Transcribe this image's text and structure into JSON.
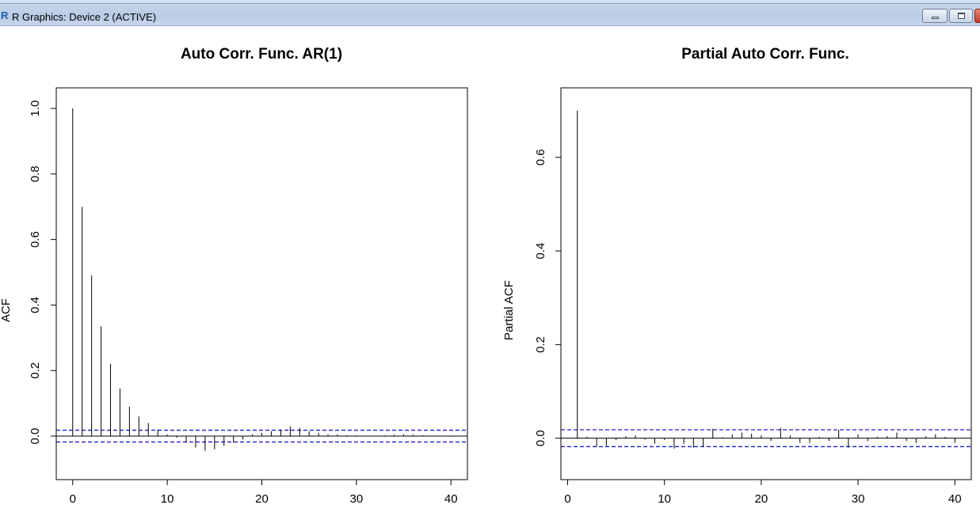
{
  "window": {
    "title": "R Graphics: Device 2 (ACTIVE)",
    "icon": "r-logo-icon"
  },
  "chart_data": [
    {
      "type": "bar",
      "title": "Auto Corr. Func. AR(1)",
      "xlabel": "",
      "ylabel": "ACF",
      "xlim": [
        0,
        40
      ],
      "ylim": [
        -0.085,
        1.015
      ],
      "x_ticks": [
        0,
        10,
        20,
        30,
        40
      ],
      "y_ticks": [
        0.0,
        0.2,
        0.4,
        0.6,
        0.8,
        1.0
      ],
      "y_tick_labels": [
        "0.0",
        "0.2",
        "0.4",
        "0.6",
        "0.8",
        "1.0"
      ],
      "confidence_band": 0.018,
      "lags": [
        0,
        1,
        2,
        3,
        4,
        5,
        6,
        7,
        8,
        9,
        10,
        11,
        12,
        13,
        14,
        15,
        16,
        17,
        18,
        19,
        20,
        21,
        22,
        23,
        24,
        25,
        26,
        27,
        28,
        29,
        30,
        31,
        32,
        33,
        34,
        35,
        36,
        37,
        38,
        39,
        40
      ],
      "values": [
        1.0,
        0.7,
        0.49,
        0.335,
        0.22,
        0.145,
        0.09,
        0.06,
        0.04,
        0.02,
        0.005,
        -0.005,
        -0.02,
        -0.035,
        -0.045,
        -0.04,
        -0.03,
        -0.02,
        -0.01,
        0.005,
        0.01,
        0.015,
        0.02,
        0.03,
        0.025,
        0.015,
        0.01,
        0.005,
        0.005,
        0.003,
        0.002,
        0.0,
        0.0,
        0.002,
        0.004,
        0.005,
        0.004,
        0.003,
        0.002,
        0.001,
        -0.002
      ]
    },
    {
      "type": "bar",
      "title": "Partial Auto Corr. Func.",
      "xlabel": "",
      "ylabel": "Partial ACF",
      "xlim": [
        1,
        40
      ],
      "ylim": [
        -0.055,
        0.715
      ],
      "x_ticks": [
        0,
        10,
        20,
        30,
        40
      ],
      "y_ticks": [
        0.0,
        0.2,
        0.4,
        0.6
      ],
      "y_tick_labels": [
        "0.0",
        "0.2",
        "0.4",
        "0.6"
      ],
      "confidence_band": 0.018,
      "lags": [
        1,
        2,
        3,
        4,
        5,
        6,
        7,
        8,
        9,
        10,
        11,
        12,
        13,
        14,
        15,
        16,
        17,
        18,
        19,
        20,
        21,
        22,
        23,
        24,
        25,
        26,
        27,
        28,
        29,
        30,
        31,
        32,
        33,
        34,
        35,
        36,
        37,
        38,
        39,
        40
      ],
      "values": [
        0.7,
        0.003,
        -0.018,
        -0.016,
        -0.004,
        0.004,
        0.006,
        -0.003,
        -0.012,
        -0.004,
        -0.022,
        -0.012,
        -0.02,
        -0.018,
        0.02,
        0.002,
        0.008,
        0.012,
        0.01,
        0.006,
        -0.006,
        0.022,
        0.006,
        -0.01,
        -0.01,
        0.003,
        -0.006,
        0.018,
        -0.02,
        0.008,
        -0.006,
        0.003,
        0.004,
        0.012,
        -0.006,
        -0.01,
        0.004,
        0.008,
        0.003,
        -0.01
      ]
    }
  ]
}
